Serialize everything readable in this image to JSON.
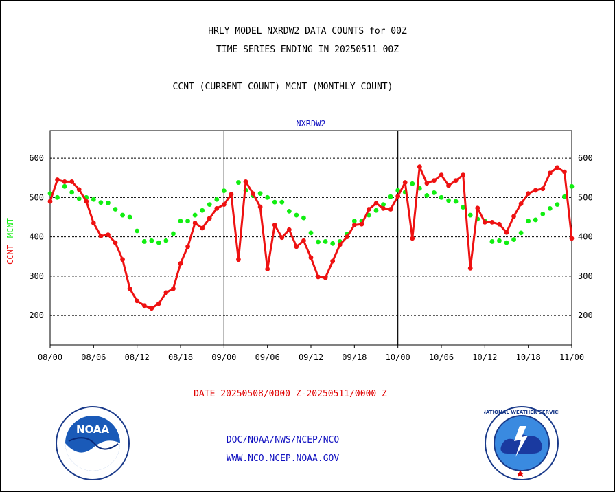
{
  "header": {
    "line1": "HRLY MODEL NXRDW2 DATA COUNTS for 00Z",
    "line2": "TIME SERIES ENDING IN 20250511 00Z",
    "line3": "CCNT (CURRENT COUNT) MCNT (MONTHLY COUNT)"
  },
  "footer": {
    "date_range": "DATE 20250508/0000 Z-20250511/0000 Z",
    "org": "DOC/NOAA/NWS/NCEP/NCO",
    "url": "WWW.NCO.NCEP.NOAA.GOV"
  },
  "logos": {
    "left_text": "NOAA",
    "right_text": "NATIONAL WEATHER SERVICE"
  },
  "colors": {
    "ccnt": "#ee1111",
    "mcnt": "#11ee11",
    "panel_label": "#1010c0"
  },
  "chart_data": {
    "type": "line",
    "title": "NXRDW2",
    "ylabel_series": [
      "CCNT",
      "MCNT"
    ],
    "ylim": [
      125,
      670
    ],
    "yticks": [
      200,
      300,
      400,
      500,
      600
    ],
    "xlim": [
      0,
      72
    ],
    "x_tick_labels": [
      "08/00",
      "08/06",
      "08/12",
      "08/18",
      "09/00",
      "09/06",
      "09/12",
      "09/18",
      "10/00",
      "10/06",
      "10/12",
      "10/18",
      "11/00"
    ],
    "day_separators": [
      24,
      48
    ],
    "grid": true,
    "x": [
      0,
      1,
      2,
      3,
      4,
      5,
      6,
      7,
      8,
      9,
      10,
      11,
      12,
      13,
      14,
      15,
      16,
      17,
      18,
      19,
      20,
      21,
      22,
      23,
      24,
      25,
      26,
      27,
      28,
      29,
      30,
      31,
      32,
      33,
      34,
      35,
      36,
      37,
      38,
      39,
      40,
      41,
      42,
      43,
      44,
      45,
      46,
      47,
      48,
      49,
      50,
      51,
      52,
      53,
      54,
      55,
      56,
      57,
      58,
      59,
      60,
      61,
      62,
      63,
      64,
      65,
      66,
      67,
      68,
      69,
      70,
      71,
      72
    ],
    "series": [
      {
        "name": "CCNT",
        "values": [
          490,
          545,
          540,
          540,
          520,
          490,
          435,
          402,
          405,
          385,
          342,
          268,
          237,
          225,
          218,
          230,
          258,
          268,
          332,
          375,
          435,
          422,
          447,
          472,
          482,
          508,
          342,
          540,
          510,
          476,
          318,
          430,
          398,
          418,
          375,
          390,
          347,
          298,
          296,
          338,
          380,
          400,
          430,
          432,
          470,
          485,
          472,
          470,
          503,
          538,
          396,
          578,
          536,
          543,
          557,
          530,
          543,
          557,
          320,
          473,
          437,
          437,
          432,
          411,
          452,
          484,
          510,
          518,
          522,
          562,
          576,
          565,
          396
        ]
      },
      {
        "name": "MCNT",
        "values": [
          510,
          500,
          528,
          513,
          497,
          500,
          495,
          487,
          486,
          470,
          455,
          450,
          415,
          388,
          390,
          385,
          390,
          408,
          440,
          440,
          455,
          467,
          482,
          495,
          517,
          508,
          538,
          518,
          505,
          510,
          500,
          488,
          488,
          465,
          455,
          448,
          410,
          387,
          388,
          383,
          388,
          407,
          440,
          440,
          455,
          467,
          482,
          502,
          518,
          513,
          535,
          523,
          505,
          512,
          500,
          492,
          490,
          475,
          455,
          445,
          440,
          388,
          390,
          385,
          393,
          410,
          440,
          443,
          458,
          472,
          482,
          502,
          528
        ]
      }
    ]
  }
}
